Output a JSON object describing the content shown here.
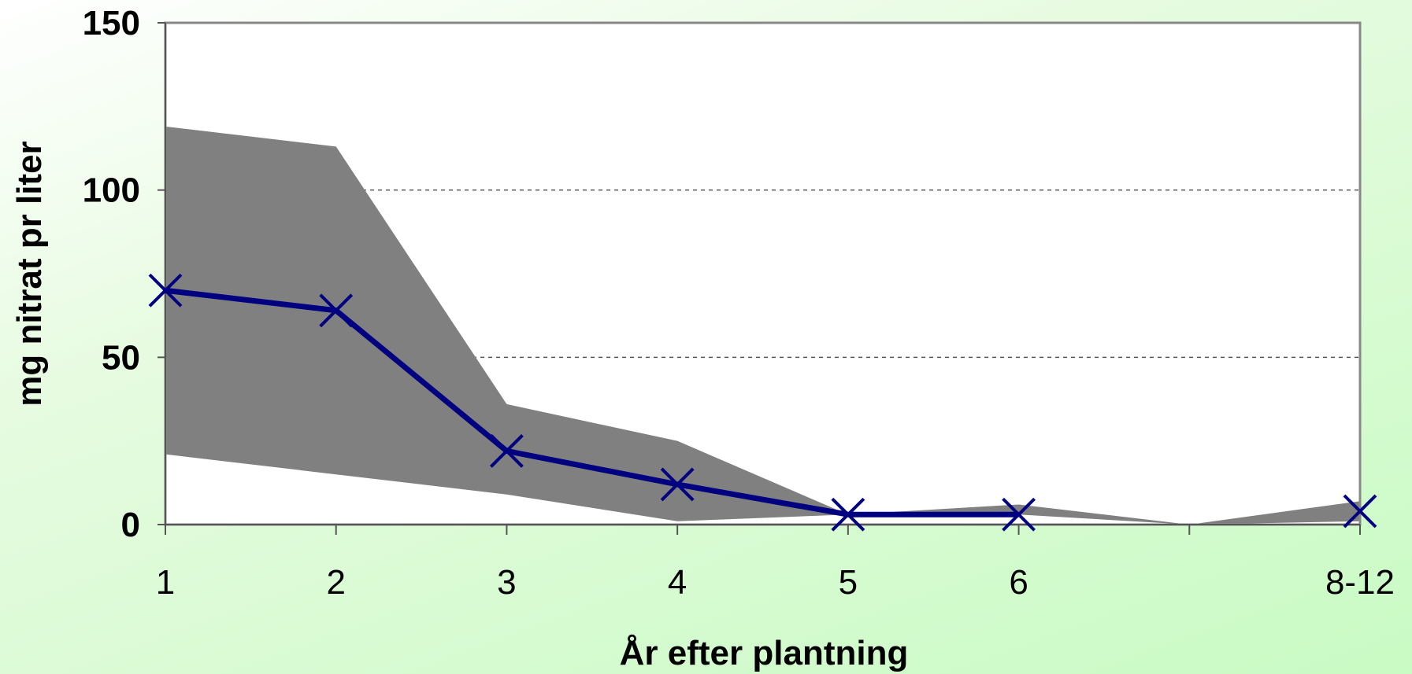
{
  "chart_data": {
    "type": "line",
    "title": "",
    "xlabel": "År efter plantning",
    "ylabel": "mg nitrat pr liter",
    "ylim": [
      0,
      150
    ],
    "yticks": [
      "0",
      "50",
      "100",
      "150"
    ],
    "categories": [
      "1",
      "2",
      "3",
      "4",
      "5",
      "6",
      "",
      "8-12"
    ],
    "grid": "horizontal dashed at 50 and 100",
    "range_band": {
      "upper": [
        119,
        113,
        36,
        25,
        3,
        6,
        0,
        7
      ],
      "lower": [
        21,
        15,
        9,
        1,
        3,
        3,
        0,
        1
      ],
      "color": "#808080"
    },
    "series": [
      {
        "values": [
          70,
          64,
          22,
          12,
          3,
          3,
          null,
          4
        ],
        "color": "#000080",
        "marker": "x"
      }
    ]
  }
}
